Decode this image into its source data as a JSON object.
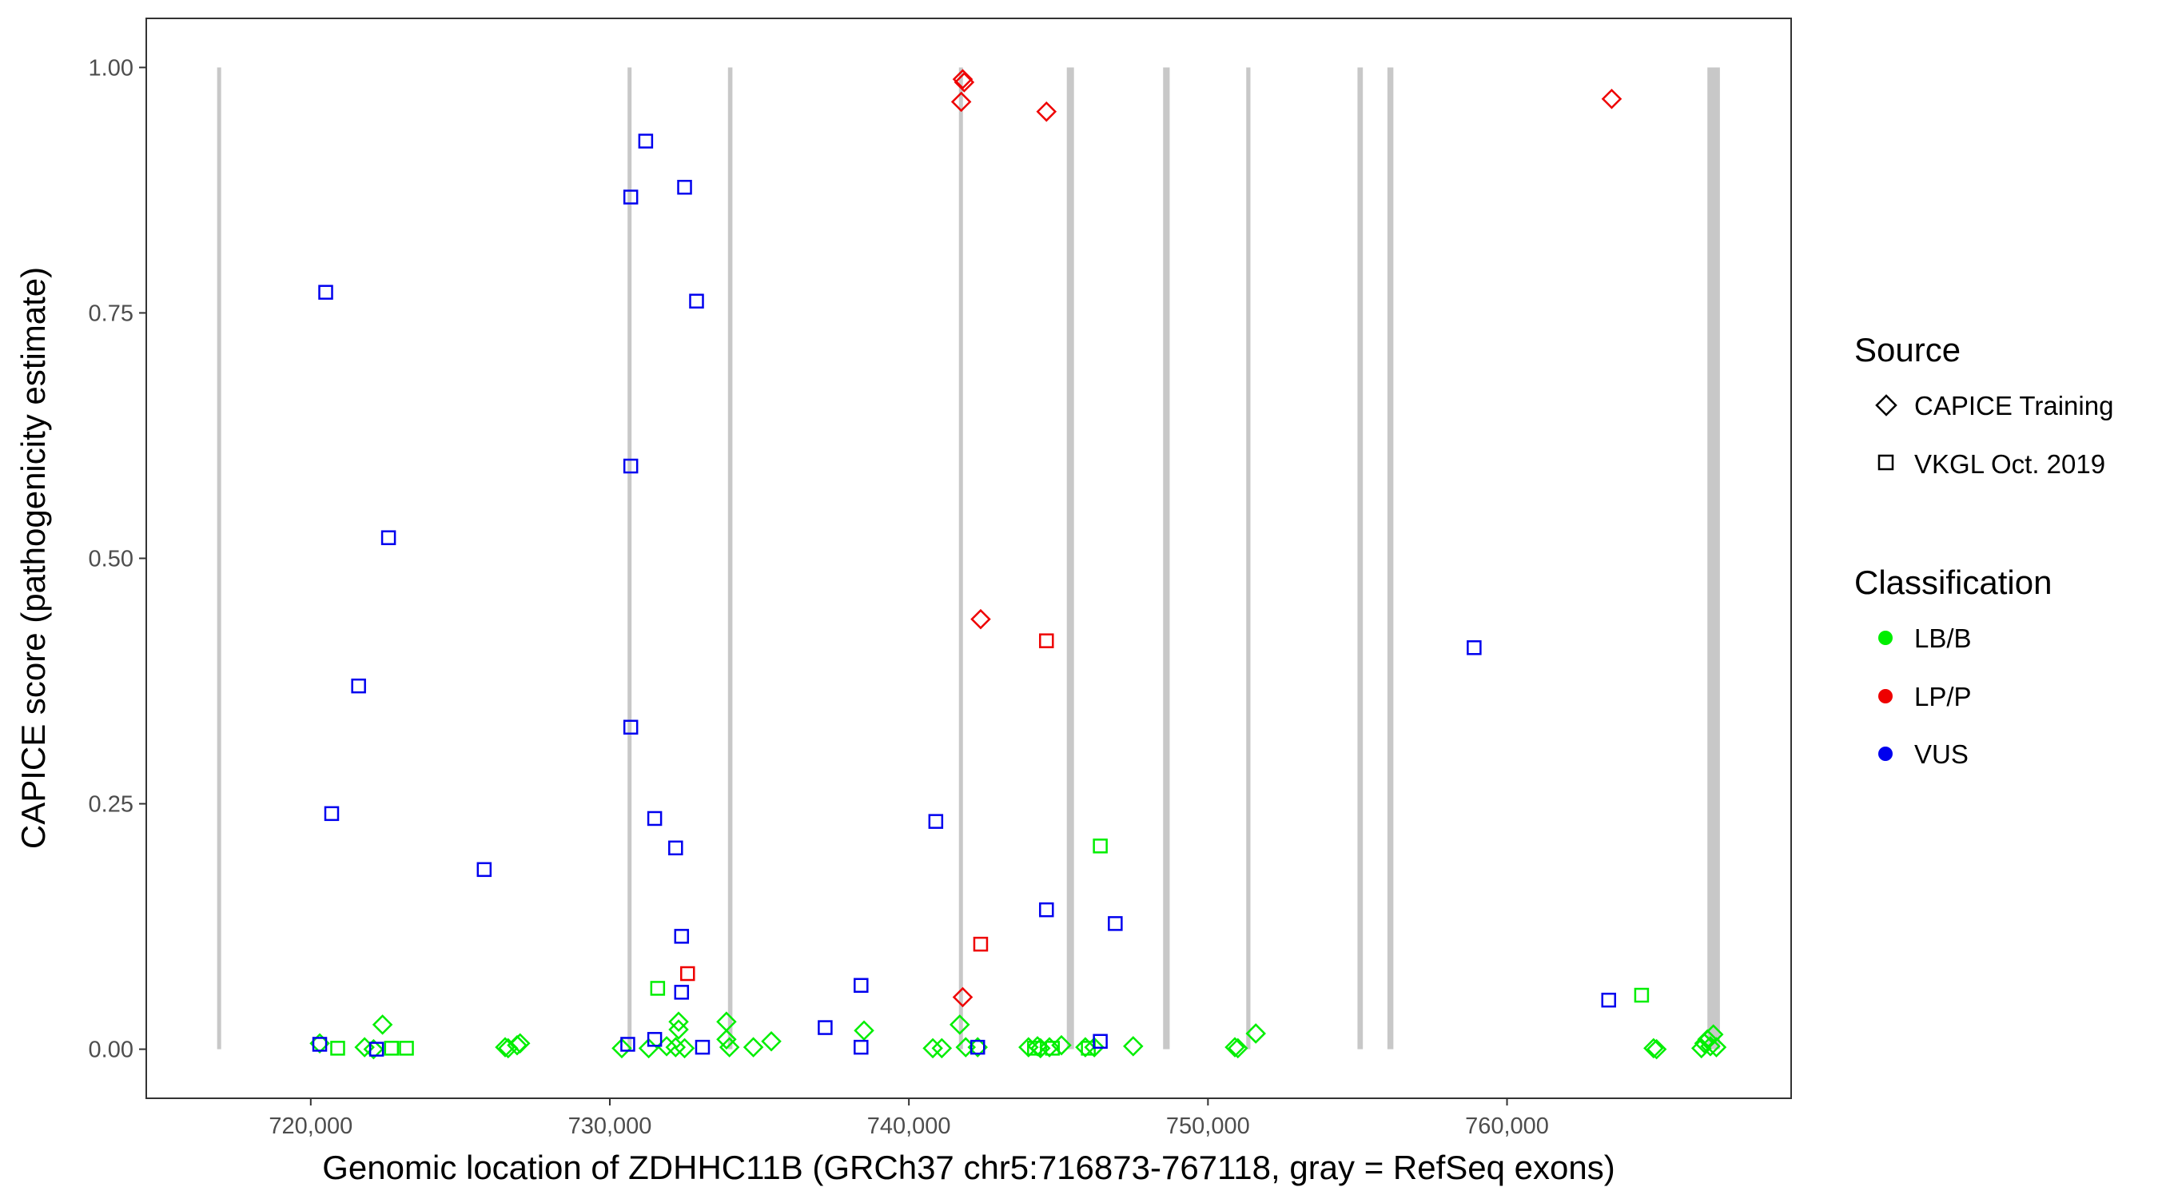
{
  "colors": {
    "LB/B": "#00ee00",
    "LP/P": "#ee0000",
    "VUS": "#0000ee",
    "exon": "#c8c8c8",
    "frame": "#333333",
    "tick": "#333333"
  },
  "chart_data": {
    "type": "scatter",
    "title": "",
    "xlabel": "Genomic location of ZDHHC11B (GRCh37 chr5:716873-767118, gray = RefSeq exons)",
    "ylabel": "CAPICE score (pathogenicity estimate)",
    "xlim": [
      714500,
      769500
    ],
    "ylim": [
      -0.05,
      1.05
    ],
    "x_ticks": [
      720000,
      730000,
      740000,
      750000,
      760000
    ],
    "x_tick_labels": [
      "720,000",
      "730,000",
      "740,000",
      "750,000",
      "760,000"
    ],
    "y_ticks": [
      0.0,
      0.25,
      0.5,
      0.75,
      1.0
    ],
    "y_tick_labels": [
      "0.00",
      "0.25",
      "0.50",
      "0.75",
      "1.00"
    ],
    "grid": false,
    "legend_position": "right",
    "exons": [
      [
        716873,
        717000
      ],
      [
        730600,
        730720
      ],
      [
        733950,
        734100
      ],
      [
        741680,
        741800
      ],
      [
        745280,
        745520
      ],
      [
        748500,
        748720
      ],
      [
        751280,
        751420
      ],
      [
        755000,
        755180
      ],
      [
        756000,
        756200
      ],
      [
        766700,
        767118
      ]
    ],
    "legend": {
      "source_title": "Source",
      "source_items": [
        {
          "label": "CAPICE Training",
          "shape": "diamond"
        },
        {
          "label": "VKGL Oct. 2019",
          "shape": "square"
        }
      ],
      "class_title": "Classification",
      "class_items": [
        {
          "label": "LB/B",
          "color": "#00ee00"
        },
        {
          "label": "LP/P",
          "color": "#ee0000"
        },
        {
          "label": "VUS",
          "color": "#0000ee"
        }
      ]
    },
    "series": [
      {
        "classification": "VUS",
        "source": "VKGL Oct. 2019",
        "points": [
          [
            720500,
            0.771
          ],
          [
            720700,
            0.24
          ],
          [
            720300,
            0.005
          ],
          [
            721600,
            0.37
          ],
          [
            722200,
            0.0
          ],
          [
            722600,
            0.521
          ],
          [
            725800,
            0.183
          ],
          [
            730600,
            0.005
          ],
          [
            730700,
            0.868
          ],
          [
            730700,
            0.594
          ],
          [
            730700,
            0.328
          ],
          [
            731200,
            0.925
          ],
          [
            731500,
            0.235
          ],
          [
            731500,
            0.01
          ],
          [
            732200,
            0.205
          ],
          [
            732500,
            0.878
          ],
          [
            732400,
            0.115
          ],
          [
            732400,
            0.058
          ],
          [
            732900,
            0.762
          ],
          [
            733100,
            0.002
          ],
          [
            737200,
            0.022
          ],
          [
            738400,
            0.065
          ],
          [
            738400,
            0.002
          ],
          [
            740900,
            0.232
          ],
          [
            742300,
            0.002
          ],
          [
            744600,
            0.142
          ],
          [
            746400,
            0.008
          ],
          [
            746900,
            0.128
          ],
          [
            758900,
            0.409
          ],
          [
            763400,
            0.05
          ]
        ]
      },
      {
        "classification": "LP/P",
        "source": "VKGL Oct. 2019",
        "points": [
          [
            732600,
            0.077
          ],
          [
            742400,
            0.107
          ],
          [
            744600,
            0.416
          ]
        ]
      },
      {
        "classification": "LB/B",
        "source": "VKGL Oct. 2019",
        "points": [
          [
            720900,
            0.001
          ],
          [
            722700,
            0.001
          ],
          [
            723200,
            0.001
          ],
          [
            731600,
            0.062
          ],
          [
            746400,
            0.207
          ],
          [
            764500,
            0.055
          ],
          [
            744200,
            0.001
          ],
          [
            744800,
            0.001
          ],
          [
            746000,
            0.001
          ]
        ]
      },
      {
        "classification": "LP/P",
        "source": "CAPICE Training",
        "points": [
          [
            741800,
            0.988
          ],
          [
            741850,
            0.985
          ],
          [
            741750,
            0.965
          ],
          [
            744600,
            0.955
          ],
          [
            763500,
            0.968
          ],
          [
            742400,
            0.438
          ],
          [
            741800,
            0.053
          ]
        ]
      },
      {
        "classification": "LB/B",
        "source": "CAPICE Training",
        "points": [
          [
            720300,
            0.006
          ],
          [
            721800,
            0.002
          ],
          [
            722100,
            0.0
          ],
          [
            722400,
            0.025
          ],
          [
            726500,
            0.002
          ],
          [
            726600,
            0.001
          ],
          [
            726900,
            0.004
          ],
          [
            727000,
            0.006
          ],
          [
            730400,
            0.001
          ],
          [
            731300,
            0.001
          ],
          [
            731900,
            0.003
          ],
          [
            732200,
            0.002
          ],
          [
            732300,
            0.028
          ],
          [
            732300,
            0.02
          ],
          [
            732500,
            0.001
          ],
          [
            733900,
            0.028
          ],
          [
            733900,
            0.01
          ],
          [
            734000,
            0.002
          ],
          [
            734800,
            0.002
          ],
          [
            735400,
            0.008
          ],
          [
            738500,
            0.019
          ],
          [
            740800,
            0.001
          ],
          [
            741100,
            0.001
          ],
          [
            741700,
            0.025
          ],
          [
            741900,
            0.002
          ],
          [
            742300,
            0.002
          ],
          [
            744000,
            0.002
          ],
          [
            744300,
            0.003
          ],
          [
            744400,
            0.001
          ],
          [
            744700,
            0.002
          ],
          [
            745100,
            0.004
          ],
          [
            745900,
            0.002
          ],
          [
            746200,
            0.002
          ],
          [
            747500,
            0.003
          ],
          [
            750900,
            0.002
          ],
          [
            751000,
            0.001
          ],
          [
            751600,
            0.016
          ],
          [
            764900,
            0.001
          ],
          [
            765000,
            0.0
          ],
          [
            766500,
            0.001
          ],
          [
            766600,
            0.006
          ],
          [
            766700,
            0.01
          ],
          [
            766800,
            0.003
          ],
          [
            766900,
            0.015
          ],
          [
            767000,
            0.002
          ]
        ]
      }
    ]
  }
}
